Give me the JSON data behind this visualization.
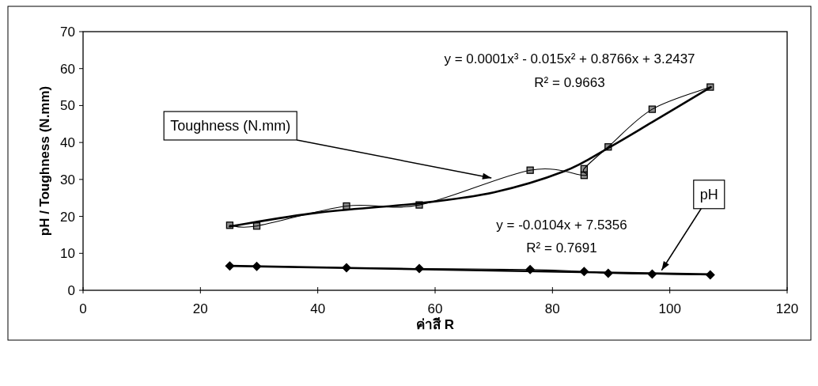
{
  "chart_data": {
    "type": "line",
    "xlabel": "ค่าสี R",
    "ylabel": "pH / Toughness (N.mm)",
    "xlim": [
      0,
      120
    ],
    "xticks": [
      0,
      20,
      40,
      60,
      80,
      100,
      120
    ],
    "ylim": [
      0,
      70
    ],
    "yticks": [
      0,
      10,
      20,
      30,
      40,
      50,
      60,
      70
    ],
    "grid": false,
    "series": [
      {
        "type": "line",
        "color": "#000000",
        "marker": "square",
        "line_style": "solid",
        "x": [
          25,
          29.6,
          44.9,
          57.3,
          76.2,
          85.4,
          85.4,
          89.5,
          97.0,
          106.9
        ],
        "values": [
          17.6,
          17.4,
          22.8,
          23.1,
          32.5,
          31.1,
          32.9,
          38.8,
          49.0,
          55.0
        ]
      },
      {
        "type": "line",
        "color": "#000000",
        "marker": "none",
        "line_style": "solid",
        "x": [
          25,
          40,
          57,
          70,
          82,
          89.5,
          97,
          107
        ],
        "values": [
          17.3,
          21,
          23.5,
          26.5,
          32.2,
          38.5,
          45.5,
          55
        ]
      },
      {
        "type": "line",
        "color": "#000000",
        "marker": "diamond",
        "line_style": "solid",
        "x": [
          25,
          29.6,
          44.9,
          57.3,
          76.2,
          85.4,
          89.5,
          97.0,
          106.9
        ],
        "values": [
          6.6,
          6.5,
          6.1,
          5.9,
          5.6,
          5.1,
          4.6,
          4.4,
          4.2
        ]
      },
      {
        "type": "line",
        "color": "#000000",
        "marker": "none",
        "line_style": "solid",
        "x": [
          25,
          107
        ],
        "values": [
          6.6,
          4.3
        ]
      }
    ],
    "annotations": [
      "y = 0.0001x³ - 0.015x² + 0.8766x + 3.2437",
      "R² = 0.9663",
      "y = -0.0104x + 7.5356",
      "R² = 0.7691",
      {
        "text": "Toughness (N.mm)",
        "x": 69.6,
        "y": 30.4
      },
      {
        "text": "pH",
        "x": 98.6,
        "y": 5.4
      }
    ]
  }
}
